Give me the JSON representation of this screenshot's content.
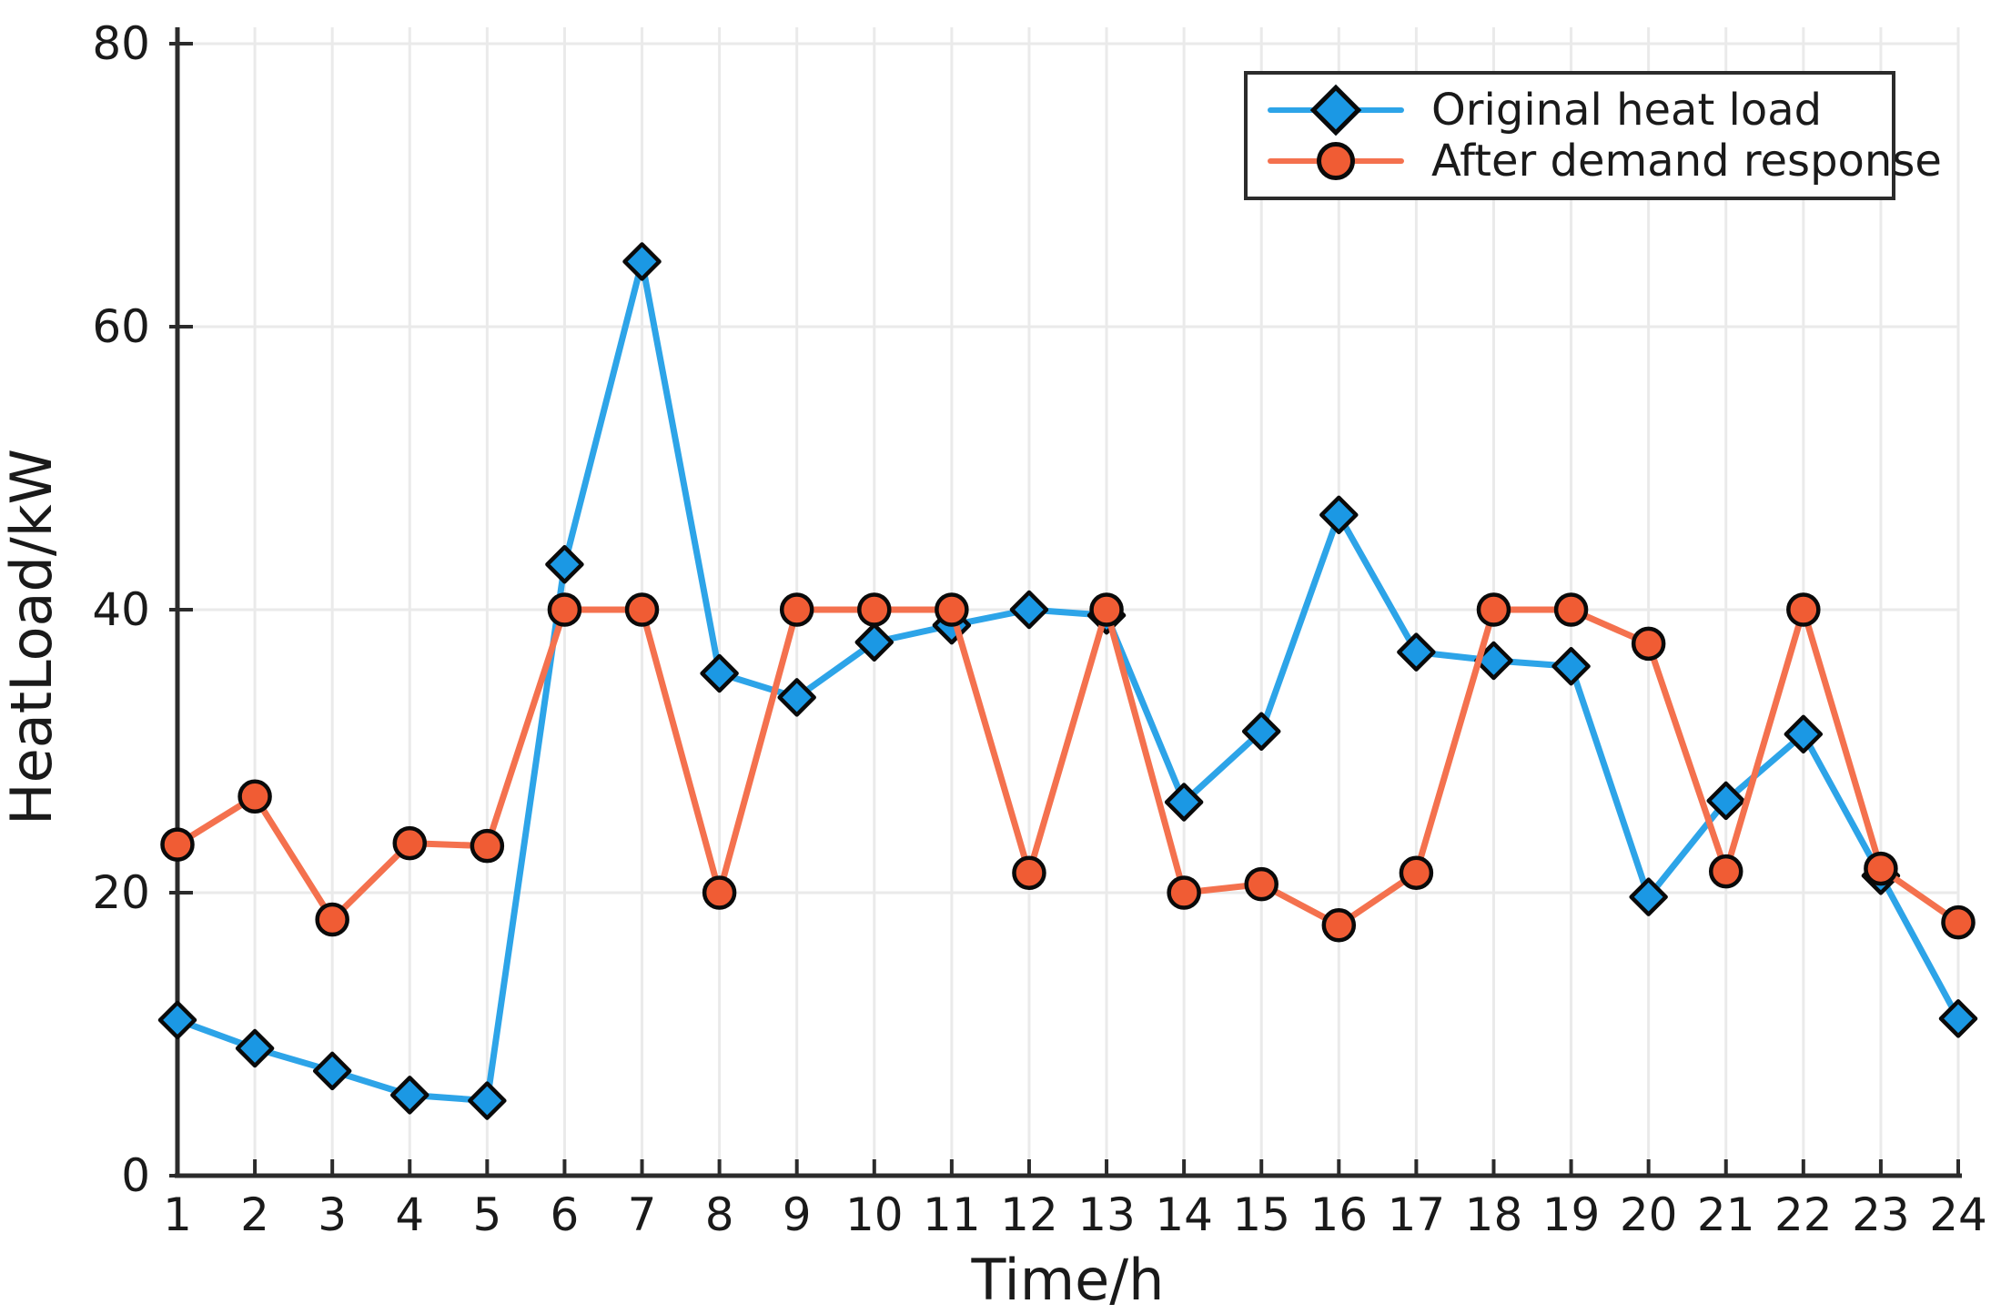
{
  "figure": {
    "background": "#ffffff"
  },
  "chart_data": {
    "type": "line",
    "title": "",
    "xlabel": "Time/h",
    "ylabel": "HeatLoad/kW",
    "x": [
      1,
      2,
      3,
      4,
      5,
      6,
      7,
      8,
      9,
      10,
      11,
      12,
      13,
      14,
      15,
      16,
      17,
      18,
      19,
      20,
      21,
      22,
      23,
      24
    ],
    "xlim": [
      1,
      24
    ],
    "ylim": [
      0,
      80
    ],
    "yticks": [
      0,
      20,
      40,
      60,
      80
    ],
    "grid": true,
    "legend_position": "top-right",
    "series": [
      {
        "name": "Original heat load",
        "marker": "diamond",
        "line_color": "#2DA4E8",
        "marker_color": "#1B98E4",
        "values": [
          11.0,
          9.0,
          7.4,
          5.7,
          5.3,
          43.2,
          64.6,
          35.5,
          33.8,
          37.7,
          38.9,
          40.0,
          39.6,
          26.4,
          31.4,
          46.7,
          37.0,
          36.4,
          36.0,
          19.7,
          26.5,
          31.2,
          21.2,
          11.1
        ]
      },
      {
        "name": "After demand response",
        "marker": "circle",
        "line_color": "#F4714E",
        "marker_color": "#F05C34",
        "values": [
          23.4,
          26.8,
          18.1,
          23.5,
          23.3,
          40.0,
          40.0,
          20.0,
          40.0,
          40.0,
          40.0,
          21.4,
          40.0,
          20.0,
          20.6,
          17.7,
          21.4,
          40.0,
          40.0,
          37.6,
          21.5,
          40.0,
          21.7,
          17.9
        ]
      }
    ],
    "colors": {
      "grid": "#EAEAEA",
      "axis": "#2b2b2b",
      "text": "#1a1a1a",
      "marker_edge": "#0a0a0a"
    }
  }
}
